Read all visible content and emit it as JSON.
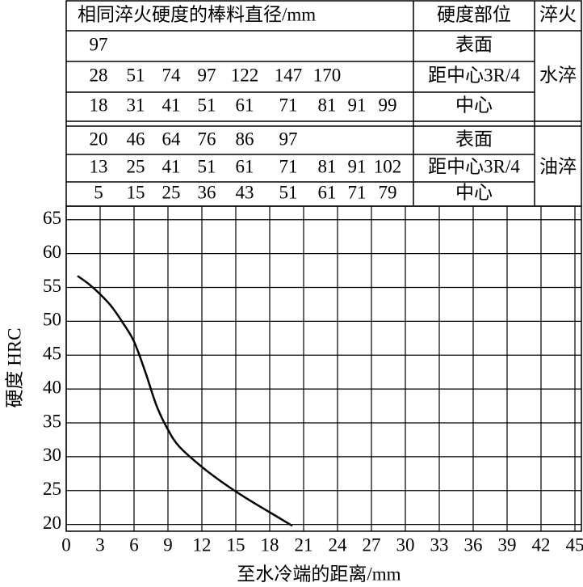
{
  "table": {
    "header": [
      "相同淬火硬度的棒料直径/mm",
      "硬度部位",
      "淬火"
    ],
    "groups": [
      {
        "quench": "水淬",
        "rows": [
          {
            "position": "表面",
            "diameters": [
              97
            ]
          },
          {
            "position": "距中心3R/4",
            "diameters": [
              28,
              51,
              74,
              97,
              122,
              147,
              170
            ]
          },
          {
            "position": "中心",
            "diameters": [
              18,
              31,
              41,
              51,
              61,
              71,
              81,
              91,
              99
            ]
          }
        ]
      },
      {
        "quench": "油淬",
        "rows": [
          {
            "position": "表面",
            "diameters": [
              20,
              46,
              64,
              76,
              86,
              97
            ]
          },
          {
            "position": "距中心3R/4",
            "diameters": [
              13,
              25,
              41,
              51,
              61,
              71,
              81,
              91,
              102
            ]
          },
          {
            "position": "中心",
            "diameters": [
              5,
              15,
              25,
              36,
              43,
              51,
              61,
              71,
              79
            ]
          }
        ]
      }
    ]
  },
  "chart_data": {
    "type": "line",
    "x_label": "至水冷端的距离/mm",
    "y_label": "硬度 HRC",
    "xlim": [
      0,
      45
    ],
    "xticks": [
      0,
      3,
      6,
      9,
      12,
      15,
      18,
      21,
      24,
      27,
      30,
      33,
      36,
      39,
      42,
      45
    ],
    "ylim": [
      19,
      67
    ],
    "yticks": [
      20,
      25,
      30,
      35,
      40,
      45,
      50,
      55,
      60,
      65
    ],
    "grid": true,
    "series": [
      {
        "color": "#000000",
        "x": [
          1,
          2,
          3,
          4,
          5,
          6,
          7,
          8,
          9,
          10,
          12,
          14,
          16,
          18,
          20
        ],
        "values": [
          56.7,
          55.5,
          54,
          52.2,
          49.8,
          47,
          42.5,
          37.5,
          34,
          31.5,
          28.5,
          26,
          23.8,
          21.8,
          19.8
        ]
      }
    ]
  }
}
